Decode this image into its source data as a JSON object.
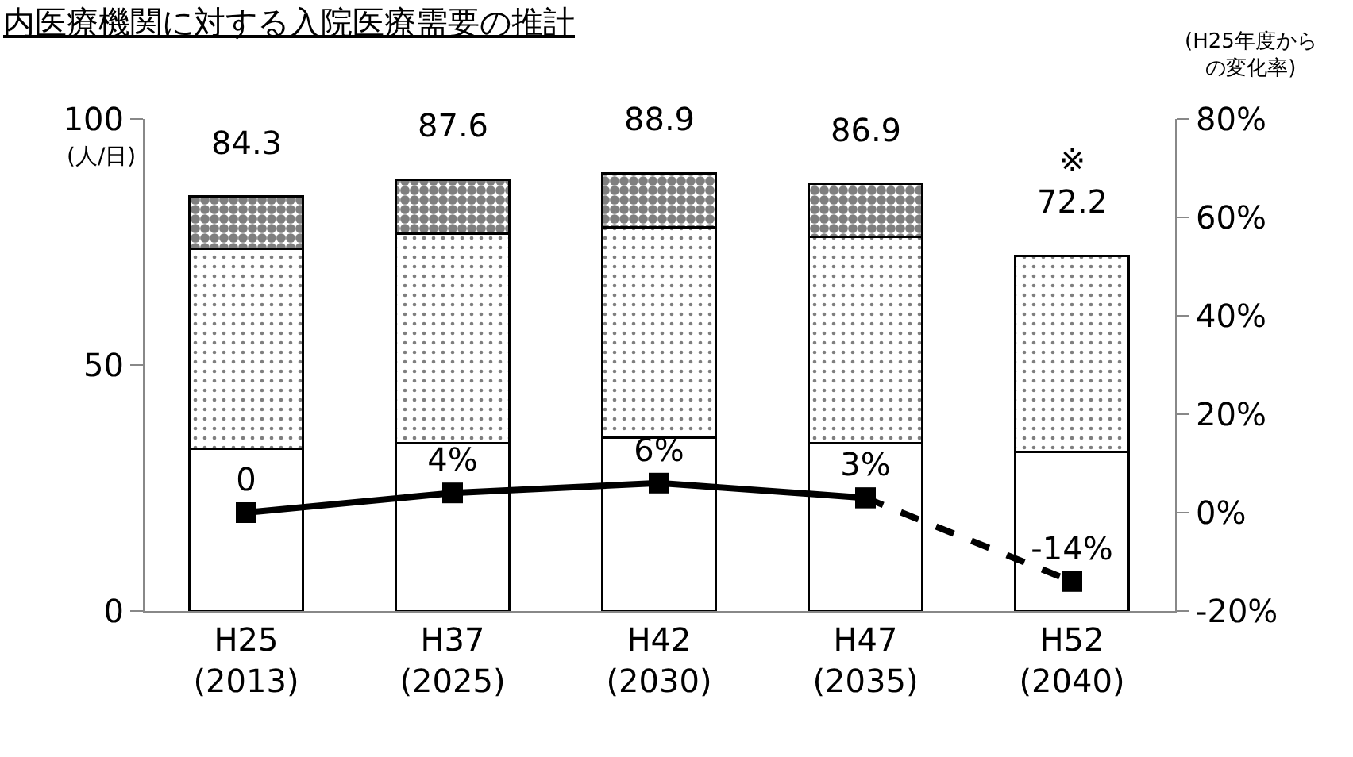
{
  "chart_data": {
    "type": "bar",
    "stacked": true,
    "title": "内医療機関に対する入院医療需要の推計",
    "ylabel": "(人/日)",
    "y2label": "(H25年度からの変化率)",
    "categories": [
      "H25\n(2013)",
      "H37\n(2025)",
      "H42\n(2030)",
      "H47\n(2035)",
      "H52\n(2040)"
    ],
    "series": [
      {
        "color": "#ffffff",
        "values": [
          33.0,
          34.1,
          35.3,
          34.1,
          32.3
        ]
      },
      {
        "color": "#000000",
        "values": [
          40.6,
          42.6,
          42.7,
          41.9,
          39.9
        ]
      },
      {
        "color": "#000000",
        "values": [
          10.7,
          10.9,
          10.9,
          10.9,
          null
        ]
      },
      {
        "type": "line",
        "axis": "y2",
        "color": "#000000",
        "marker": "square",
        "line_style": "solid",
        "values": [
          0,
          4,
          6,
          3,
          null
        ],
        "value_labels": [
          "0",
          "4%",
          "6%",
          "3%",
          null
        ]
      },
      {
        "type": "line",
        "axis": "y2",
        "color": "#000000",
        "marker": "square",
        "line_style": "dashed",
        "values": [
          null,
          null,
          null,
          3,
          -14
        ],
        "value_labels": [
          null,
          null,
          null,
          null,
          "-14%"
        ]
      }
    ],
    "totals": [
      "84.3",
      "87.6",
      "88.9",
      "86.9",
      "※\n72.2"
    ],
    "ylim": [
      0,
      100
    ],
    "yticks": [
      0,
      50,
      100
    ],
    "y2lim": [
      -20,
      80
    ],
    "y2ticks": [
      {
        "value": -20,
        "label": "-20%"
      },
      {
        "value": 0,
        "label": "0%"
      },
      {
        "value": 20,
        "label": "20%"
      },
      {
        "value": 40,
        "label": "40%"
      },
      {
        "value": 60,
        "label": "60%"
      },
      {
        "value": 80,
        "label": "80%"
      }
    ]
  }
}
